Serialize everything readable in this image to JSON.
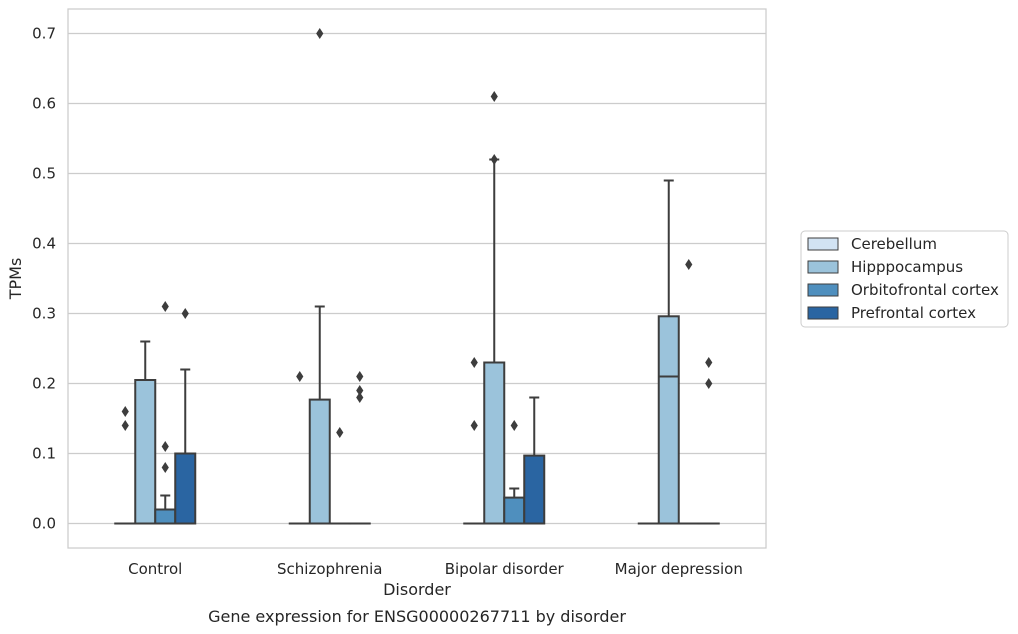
{
  "caption": "Gene expression for ENSG00000267711 by disorder",
  "chart_data": {
    "type": "box",
    "xlabel": "Disorder",
    "ylabel": "TPMs",
    "ylim": [
      -0.035,
      0.735
    ],
    "yticks": [
      "0.0",
      "0.1",
      "0.2",
      "0.3",
      "0.4",
      "0.5",
      "0.6",
      "0.7"
    ],
    "ytick_values": [
      0.0,
      0.1,
      0.2,
      0.3,
      0.4,
      0.5,
      0.6,
      0.7
    ],
    "grid": "horizontal",
    "legend_position": "right",
    "categories": [
      "Control",
      "Schizophrenia",
      "Bipolar disorder",
      "Major depression"
    ],
    "series": [
      {
        "name": "Cerebellum",
        "color": "#d2e3f3",
        "boxes": [
          {
            "q1": 0,
            "median": 0,
            "q3": 0,
            "whisker_low": 0,
            "whisker_high": 0,
            "outliers": [
              0.14,
              0.16
            ]
          },
          {
            "q1": 0,
            "median": 0,
            "q3": 0,
            "whisker_low": 0,
            "whisker_high": 0,
            "outliers": [
              0.21
            ]
          },
          {
            "q1": 0,
            "median": 0,
            "q3": 0,
            "whisker_low": 0,
            "whisker_high": 0,
            "outliers": [
              0.14,
              0.23
            ]
          },
          {
            "q1": 0,
            "median": 0,
            "q3": 0,
            "whisker_low": 0,
            "whisker_high": 0,
            "outliers": []
          }
        ]
      },
      {
        "name": "Hipppocampus",
        "color": "#9bc3db",
        "boxes": [
          {
            "q1": 0,
            "median": 0,
            "q3": 0.205,
            "whisker_low": 0,
            "whisker_high": 0.26,
            "outliers": []
          },
          {
            "q1": 0,
            "median": 0,
            "q3": 0.177,
            "whisker_low": 0,
            "whisker_high": 0.31,
            "outliers": [
              0.7
            ]
          },
          {
            "q1": 0,
            "median": 0,
            "q3": 0.23,
            "whisker_low": 0,
            "whisker_high": 0.52,
            "outliers": [
              0.52,
              0.61
            ]
          },
          {
            "q1": 0,
            "median": 0.21,
            "q3": 0.296,
            "whisker_low": 0,
            "whisker_high": 0.49,
            "outliers": []
          }
        ]
      },
      {
        "name": "Orbitofrontal cortex",
        "color": "#4f8fbe",
        "boxes": [
          {
            "q1": 0,
            "median": 0,
            "q3": 0.02,
            "whisker_low": 0,
            "whisker_high": 0.04,
            "outliers": [
              0.08,
              0.11,
              0.31
            ]
          },
          {
            "q1": 0,
            "median": 0,
            "q3": 0,
            "whisker_low": 0,
            "whisker_high": 0,
            "outliers": [
              0.13
            ]
          },
          {
            "q1": 0,
            "median": 0,
            "q3": 0.037,
            "whisker_low": 0,
            "whisker_high": 0.05,
            "outliers": [
              0.14
            ]
          },
          {
            "q1": 0,
            "median": 0,
            "q3": 0,
            "whisker_low": 0,
            "whisker_high": 0,
            "outliers": [
              0.37
            ]
          }
        ]
      },
      {
        "name": "Prefrontal cortex",
        "color": "#2a65a2",
        "boxes": [
          {
            "q1": 0,
            "median": 0,
            "q3": 0.1,
            "whisker_low": 0,
            "whisker_high": 0.22,
            "outliers": [
              0.3
            ]
          },
          {
            "q1": 0,
            "median": 0,
            "q3": 0,
            "whisker_low": 0,
            "whisker_high": 0,
            "outliers": [
              0.18,
              0.19,
              0.21
            ]
          },
          {
            "q1": 0,
            "median": 0,
            "q3": 0.097,
            "whisker_low": 0,
            "whisker_high": 0.18,
            "outliers": []
          },
          {
            "q1": 0,
            "median": 0,
            "q3": 0,
            "whisker_low": 0,
            "whisker_high": 0,
            "outliers": [
              0.2,
              0.23
            ]
          }
        ]
      }
    ]
  }
}
